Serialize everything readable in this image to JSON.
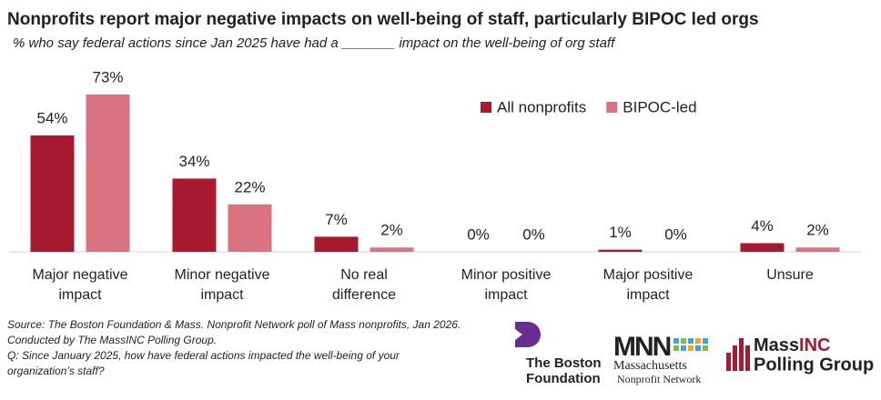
{
  "chart_data": {
    "type": "bar",
    "title": "Nonprofits report major negative impacts on well-being of staff, particularly BIPOC led orgs",
    "subtitle": "% who say federal actions since Jan 2025 have had a _______ impact on the well-being of org staff",
    "categories": [
      "Major negative impact",
      "Minor negative impact",
      "No real difference",
      "Minor positive impact",
      "Major positive impact",
      "Unsure"
    ],
    "series": [
      {
        "name": "All nonprofits",
        "color": "#a6192e",
        "values": [
          54,
          34,
          7,
          0,
          1,
          4
        ],
        "value_labels": [
          "54%",
          "34%",
          "7%",
          "0%",
          "1%",
          "4%"
        ]
      },
      {
        "name": "BIPOC-led",
        "color": "#d9737f",
        "values": [
          73,
          22,
          2,
          0,
          0,
          2
        ],
        "value_labels": [
          "73%",
          "22%",
          "2%",
          "0%",
          "0%",
          "2%"
        ]
      }
    ]
  },
  "footer": [
    "Source: The Boston Foundation & Mass. Nonprofit Network poll of Mass nonprofits, Jan 2026.",
    "Conducted  by The MassINC Polling Group.",
    "Q: Since January 2025, how have federal actions impacted the well-being of your",
    "organization’s staff?"
  ],
  "logos": {
    "boston_1": "The Boston",
    "boston_2": "Foundation",
    "mnn_mark": "MNN",
    "mnn_1": "Massachusetts",
    "mnn_2": "Nonprofit Network",
    "massinc_1": "Mass",
    "massinc_2": "INC",
    "massinc_3": "Polling Group"
  }
}
